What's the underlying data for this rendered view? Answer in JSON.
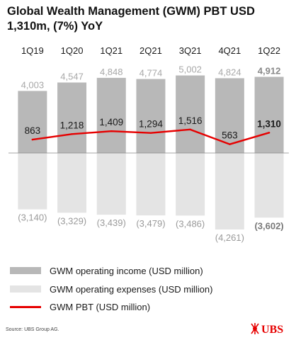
{
  "title": "Global Wealth Management (GWM) PBT USD 1,310m, (7%) YoY",
  "source": "Source: UBS Group AG.",
  "logo_text": "UBS",
  "colors": {
    "income_bar": "#b8b8b8",
    "expense_bar": "#e4e4e4",
    "pbt_line": "#e60000",
    "income_label": "#a8a8a8",
    "expense_label": "#9a9a9a",
    "dark_text": "#1a1a1a",
    "highlight_income_label": "#888888",
    "highlight_expense_label": "#777777"
  },
  "legend": [
    {
      "key": "income",
      "label": "GWM operating income (USD million)"
    },
    {
      "key": "expenses",
      "label": "GWM operating expenses (USD million)"
    },
    {
      "key": "pbt",
      "label": "GWM PBT (USD million)"
    }
  ],
  "chart_data": {
    "type": "bar",
    "categories": [
      "1Q19",
      "1Q20",
      "1Q21",
      "2Q21",
      "3Q21",
      "4Q21",
      "1Q22"
    ],
    "series": [
      {
        "name": "GWM operating income (USD million)",
        "kind": "bar",
        "values": [
          4003,
          4547,
          4848,
          4774,
          5002,
          4824,
          4912
        ],
        "labels": [
          "4,003",
          "4,547",
          "4,848",
          "4,774",
          "5,002",
          "4,824",
          "4,912"
        ]
      },
      {
        "name": "GWM operating expenses (USD million)",
        "kind": "bar",
        "values": [
          -3140,
          -3329,
          -3439,
          -3479,
          -3486,
          -4261,
          -3602
        ],
        "labels": [
          "(3,140)",
          "(3,329)",
          "(3,439)",
          "(3,479)",
          "(3,486)",
          "(4,261)",
          "(3,602)"
        ]
      },
      {
        "name": "GWM PBT (USD million)",
        "kind": "line",
        "values": [
          863,
          1218,
          1409,
          1294,
          1516,
          563,
          1310
        ],
        "labels": [
          "863",
          "1,218",
          "1,409",
          "1,294",
          "1,516",
          "563",
          "1,310"
        ]
      }
    ],
    "highlight_category": "1Q22",
    "ylim": [
      -4500,
      5300
    ],
    "grid": false,
    "legend_position": "bottom"
  }
}
